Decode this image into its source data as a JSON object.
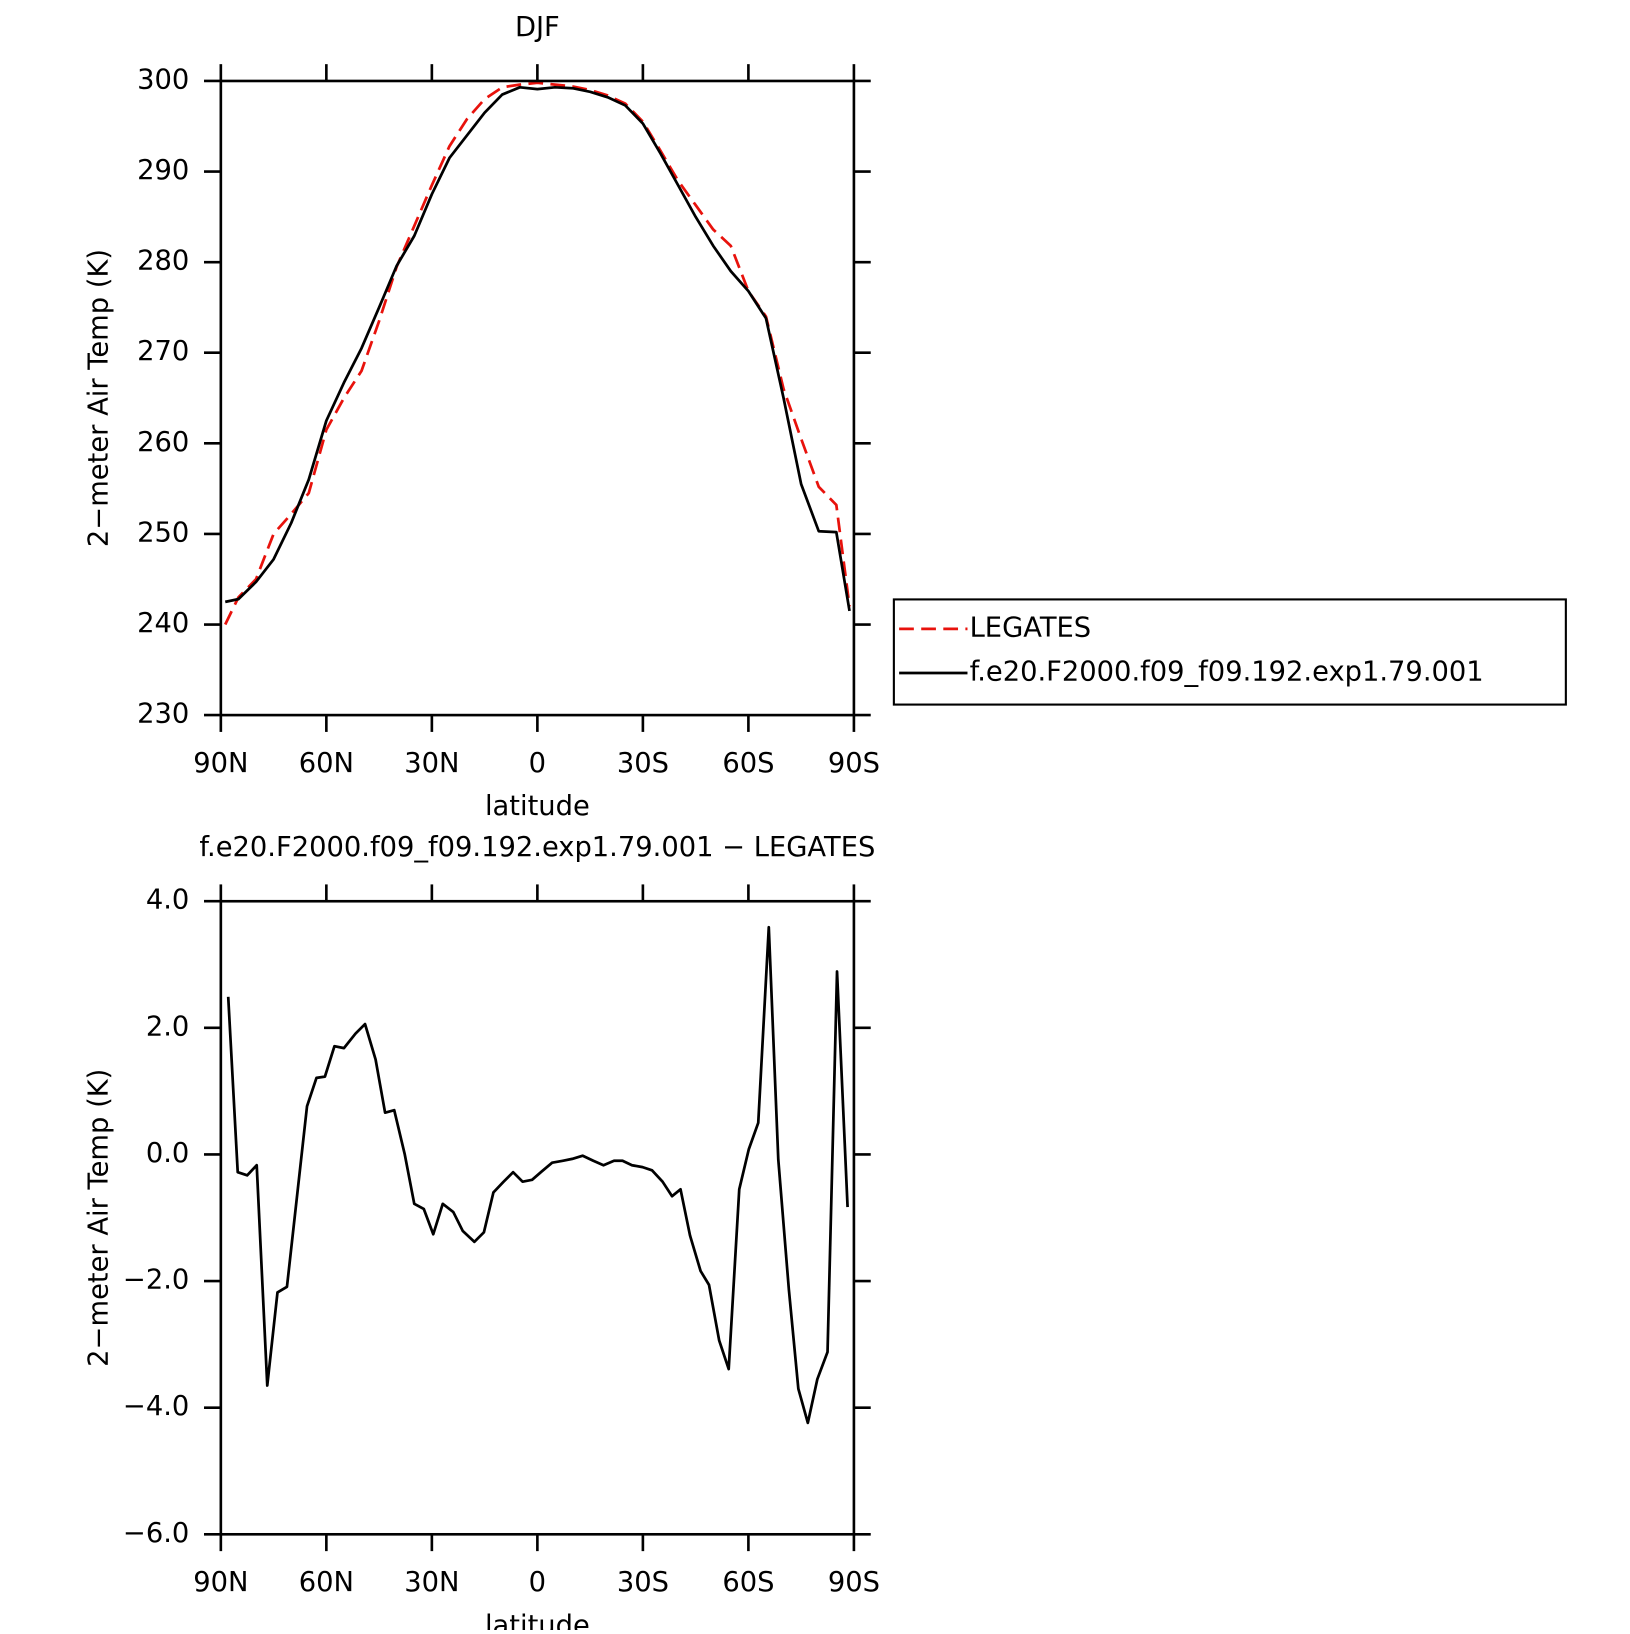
{
  "chart_data": [
    {
      "type": "line",
      "title": "DJF",
      "xlabel": "latitude",
      "ylabel": "2−meter Air Temp (K)",
      "x": [
        88.75,
        85,
        80,
        75,
        70,
        65,
        60,
        55,
        50,
        45,
        40,
        35,
        30,
        25,
        20,
        15,
        10,
        5,
        0,
        -5,
        -10,
        -15,
        -20,
        -25,
        -30,
        -35,
        -40,
        -45,
        -50,
        -55,
        -60,
        -65,
        -70,
        -75,
        -80,
        -85,
        -88.75
      ],
      "series": [
        {
          "name": "LEGATES",
          "color": "#e8120c",
          "style": "dashed",
          "values": [
            240,
            243,
            245,
            250,
            252.2,
            254.5,
            261.5,
            265,
            268,
            273.5,
            279.5,
            284,
            288.5,
            292.8,
            295.8,
            298,
            299.3,
            299.6,
            299.8,
            299.6,
            299.4,
            299,
            298.4,
            297.5,
            295.5,
            292.3,
            289,
            286.3,
            283.6,
            281.8,
            276.8,
            274,
            266,
            260.5,
            255.2,
            253.2,
            242
          ]
        },
        {
          "name": "f.e20.F2000.f09_f09.192.exp1.79.001",
          "color": "#000000",
          "style": "solid",
          "values": [
            242.5,
            242.8,
            244.7,
            247.2,
            251.2,
            256,
            262.5,
            266.7,
            270.5,
            275,
            279.6,
            282.9,
            287.5,
            291.5,
            294,
            296.5,
            298.5,
            299.3,
            299.1,
            299.3,
            299.2,
            298.8,
            298.2,
            297.3,
            295.3,
            292,
            288.5,
            285,
            281.8,
            279,
            276.8,
            273.8,
            265,
            255.5,
            250.3,
            250.2,
            241.5
          ]
        }
      ],
      "xlim": [
        90,
        -90
      ],
      "xticks": [
        {
          "value": 90,
          "label": "90N"
        },
        {
          "value": 60,
          "label": "60N"
        },
        {
          "value": 30,
          "label": "30N"
        },
        0,
        {
          "value": -30,
          "label": "30S"
        },
        {
          "value": -60,
          "label": "60S"
        },
        {
          "value": -90,
          "label": "90S"
        }
      ],
      "ylim": [
        230,
        300
      ],
      "yticks": [
        230,
        240,
        250,
        260,
        270,
        280,
        290,
        300
      ],
      "legend": "right"
    },
    {
      "type": "line",
      "title": "f.e20.F2000.f09_f09.192.exp1.79.001 − LEGATES",
      "xlabel": "latitude",
      "ylabel": "2−meter Air Temp (K)",
      "x": [
        87.9,
        85.2,
        82.5,
        79.8,
        76.8,
        73.9,
        71.2,
        65.5,
        62.8,
        60.4,
        57.7,
        55.0,
        51.7,
        49.0,
        46.0,
        43.3,
        40.7,
        37.7,
        35.0,
        32.3,
        29.6,
        26.9,
        23.9,
        21.2,
        17.9,
        15.2,
        12.5,
        9.6,
        6.9,
        4.2,
        1.5,
        -1.2,
        -4.2,
        -7.2,
        -9.9,
        -12.9,
        -15.9,
        -18.8,
        -21.8,
        -24.2,
        -26.9,
        -29.9,
        -32.6,
        -35.6,
        -38.3,
        -40.7,
        -43.4,
        -46.4,
        -48.8,
        -51.7,
        -54.4,
        -57.4,
        -60.1,
        -62.8,
        -65.8,
        -68.5,
        -71.5,
        -74.2,
        -76.9,
        -79.6,
        -82.5,
        -85.2,
        -88.2
      ],
      "values": [
        2.49,
        -0.28,
        -0.33,
        -0.17,
        -3.65,
        -2.18,
        -2.09,
        0.76,
        1.21,
        1.23,
        1.71,
        1.68,
        1.91,
        2.06,
        1.5,
        0.66,
        0.7,
        0,
        -0.78,
        -0.86,
        -1.26,
        -0.78,
        -0.91,
        -1.21,
        -1.38,
        -1.23,
        -0.6,
        -0.43,
        -0.28,
        -0.43,
        -0.4,
        -0.27,
        -0.13,
        -0.1,
        -0.07,
        -0.02,
        -0.1,
        -0.17,
        -0.1,
        -0.1,
        -0.17,
        -0.2,
        -0.25,
        -0.43,
        -0.66,
        -0.55,
        -1.28,
        -1.84,
        -2.06,
        -2.94,
        -3.39,
        -0.55,
        0.08,
        0.5,
        3.59,
        -0.08,
        -2.13,
        -3.7,
        -4.24,
        -3.55,
        -3.12,
        2.89,
        -0.83
      ],
      "color": "#000000",
      "xlim": [
        90,
        -90
      ],
      "xticks": [
        {
          "value": 90,
          "label": "90N"
        },
        {
          "value": 60,
          "label": "60N"
        },
        {
          "value": 30,
          "label": "30N"
        },
        0,
        {
          "value": -30,
          "label": "30S"
        },
        {
          "value": -60,
          "label": "60S"
        },
        {
          "value": -90,
          "label": "90S"
        }
      ],
      "ylim": [
        -6,
        4
      ],
      "yticks": [
        {
          "value": -6,
          "label": "−6.0"
        },
        {
          "value": -4,
          "label": "−4.0"
        },
        {
          "value": -2,
          "label": "−2.0"
        },
        {
          "value": 0,
          "label": "0.0"
        },
        {
          "value": 2,
          "label": "2.0"
        },
        {
          "value": 4,
          "label": "4.0"
        }
      ]
    }
  ]
}
